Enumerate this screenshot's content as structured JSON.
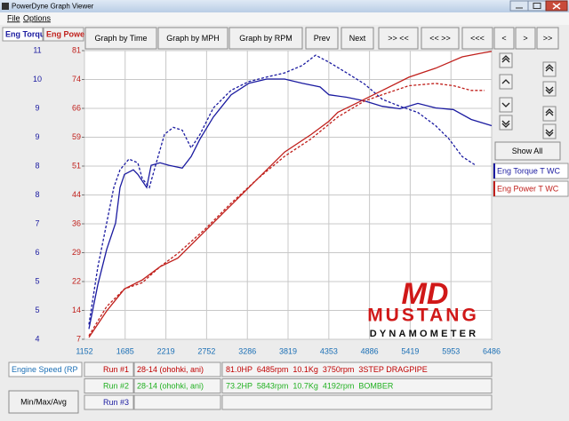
{
  "window": {
    "title": "PowerDyne Graph Viewer",
    "menu": [
      "File",
      "Options"
    ]
  },
  "tabs": [
    {
      "label": "Eng Torque",
      "color": "#1a1aa0"
    },
    {
      "label": "Eng Power",
      "color": "#c0201c"
    }
  ],
  "toolbar": [
    "Graph by Time",
    "Graph by MPH",
    "Graph by RPM",
    "Prev",
    "Next",
    ">> <<",
    "<< >>",
    "<<<",
    "<",
    ">",
    ">>"
  ],
  "side_button": "Show All",
  "logo": {
    "mark": "MD",
    "name": "MUSTANG",
    "sub": "DYNAMOMETER"
  },
  "x_channel": "Engine Speed (RP",
  "stats_button": "Min/Max/Avg",
  "runs": [
    {
      "label": "Run #1",
      "file": "28-14 (ohohki, ani)",
      "summary": "81.0HP  6485rpm  10.1Kg  3750rpm  3STEP DRAGPIPE",
      "color": "#c00000"
    },
    {
      "label": "Run #2",
      "file": "28-14 (ohohki, ani)",
      "summary": "73.2HP  5843rpm  10.7Kg  4192rpm  BOMBER",
      "color": "#20b020"
    },
    {
      "label": "Run #3",
      "color": "#1a1aa0"
    }
  ],
  "chart_data": {
    "type": "line",
    "xlim": [
      1152,
      6486
    ],
    "xticks": [
      1152,
      1685,
      2219,
      2752,
      3286,
      3819,
      4353,
      4886,
      5419,
      5953,
      6486
    ],
    "ylim": [
      4,
      11
    ],
    "yticks": [
      {
        "value": 4,
        "label": "4"
      },
      {
        "value": 4.7,
        "label": "5"
      },
      {
        "value": 5.4,
        "label": "5"
      },
      {
        "value": 6.1,
        "label": "6"
      },
      {
        "value": 6.8,
        "label": "7"
      },
      {
        "value": 7.5,
        "label": "8"
      },
      {
        "value": 8.2,
        "label": "8"
      },
      {
        "value": 8.9,
        "label": "9"
      },
      {
        "value": 9.6,
        "label": "9"
      },
      {
        "value": 10.3,
        "label": "10"
      },
      {
        "value": 11,
        "label": "11"
      }
    ],
    "y2lim": [
      7,
      81
    ],
    "y2ticks": [
      {
        "value": 7,
        "label": "7"
      },
      {
        "value": 14.4,
        "label": "14"
      },
      {
        "value": 21.8,
        "label": "22"
      },
      {
        "value": 29.2,
        "label": "29"
      },
      {
        "value": 36.6,
        "label": "36"
      },
      {
        "value": 44,
        "label": "44"
      },
      {
        "value": 51.4,
        "label": "51"
      },
      {
        "value": 58.8,
        "label": "59"
      },
      {
        "value": 66.2,
        "label": "66"
      },
      {
        "value": 73.6,
        "label": "74"
      },
      {
        "value": 81,
        "label": "81"
      }
    ],
    "grid": true,
    "series": [
      {
        "name": "Eng Torque T WC",
        "color": "#1a1aa0",
        "axis": "y",
        "dashed": false,
        "x": [
          1210,
          1327,
          1443,
          1560,
          1618,
          1676,
          1793,
          1851,
          1967,
          2025,
          2142,
          2258,
          2433,
          2549,
          2666,
          2841,
          3074,
          3307,
          3540,
          3773,
          4005,
          4238,
          4355,
          4588,
          4821,
          5053,
          5286,
          5519,
          5752,
          5985,
          6218,
          6486
        ],
        "values": [
          4.25,
          5.32,
          6.18,
          6.82,
          7.68,
          8.0,
          8.11,
          8.0,
          7.68,
          8.22,
          8.28,
          8.22,
          8.15,
          8.43,
          8.86,
          9.39,
          9.93,
          10.21,
          10.31,
          10.31,
          10.21,
          10.12,
          9.93,
          9.87,
          9.78,
          9.65,
          9.59,
          9.72,
          9.61,
          9.57,
          9.33,
          9.18
        ]
      },
      {
        "name": "Eng Torque T WC",
        "color": "#1a1aa0",
        "axis": "y",
        "dashed": true,
        "x": [
          1210,
          1327,
          1443,
          1536,
          1618,
          1734,
          1851,
          1909,
          2002,
          2084,
          2200,
          2317,
          2433,
          2549,
          2666,
          2841,
          3074,
          3307,
          3540,
          3773,
          4005,
          4180,
          4355,
          4588,
          4821,
          5053,
          5286,
          5519,
          5752,
          5927,
          6101,
          6276
        ],
        "values": [
          4.36,
          5.75,
          6.82,
          7.68,
          8.11,
          8.37,
          8.28,
          7.9,
          7.68,
          8.22,
          8.97,
          9.14,
          9.07,
          8.64,
          8.97,
          9.61,
          10.04,
          10.25,
          10.36,
          10.46,
          10.64,
          10.89,
          10.72,
          10.46,
          10.19,
          9.82,
          9.65,
          9.5,
          9.18,
          8.86,
          8.43,
          8.22
        ]
      },
      {
        "name": "Eng Power T WC",
        "color": "#c0201c",
        "axis": "y2",
        "dashed": false,
        "x": [
          1210,
          1443,
          1676,
          1909,
          2142,
          2375,
          2724,
          3074,
          3423,
          3773,
          4122,
          4355,
          4471,
          4704,
          5053,
          5403,
          5752,
          6101,
          6334,
          6486
        ],
        "values": [
          7.47,
          14.26,
          19.9,
          22.2,
          25.6,
          27.8,
          34.6,
          41.4,
          48.2,
          55.0,
          59.5,
          62.9,
          65.2,
          67.4,
          70.8,
          74.2,
          76.5,
          79.4,
          80.3,
          80.8
        ]
      },
      {
        "name": "Eng Power T WC",
        "color": "#c0201c",
        "axis": "y2",
        "dashed": true,
        "x": [
          1210,
          1443,
          1676,
          1909,
          2142,
          2375,
          2724,
          3074,
          3423,
          3773,
          4122,
          4471,
          4821,
          5053,
          5403,
          5752,
          5985,
          6218,
          6393
        ],
        "values": [
          7.9,
          15.4,
          19.9,
          21.5,
          25.6,
          29.0,
          35.1,
          41.9,
          48.2,
          53.9,
          58.4,
          64.0,
          68.1,
          69.7,
          72.0,
          72.6,
          72.0,
          70.8,
          70.8
        ]
      }
    ]
  }
}
